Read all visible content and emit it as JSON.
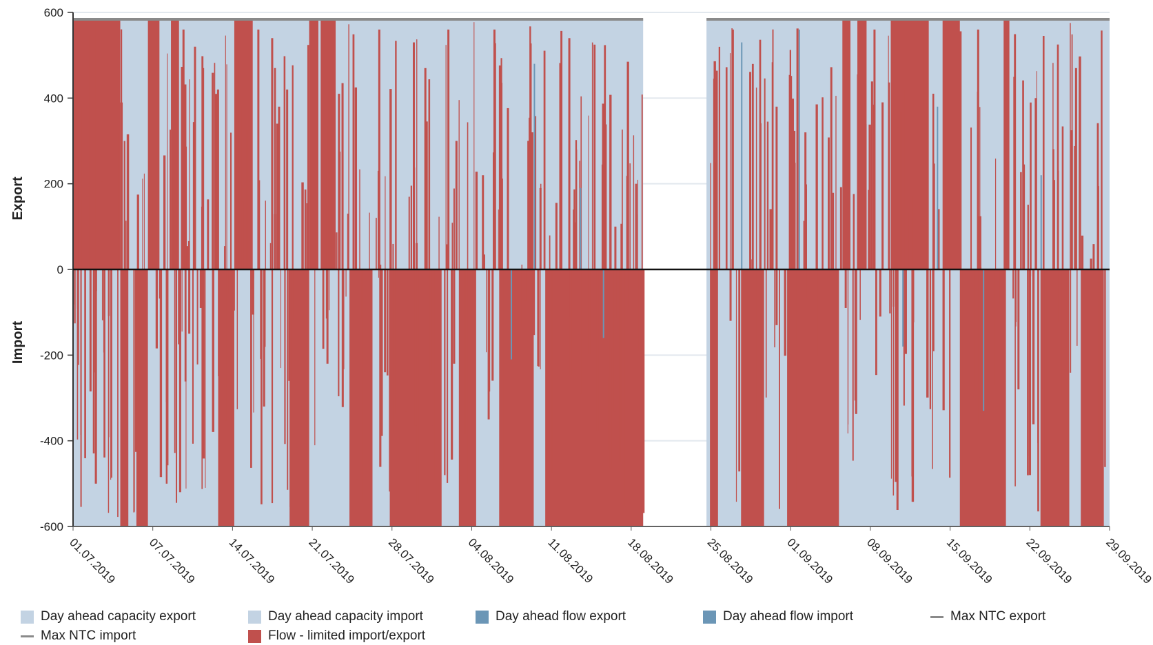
{
  "chart_data": {
    "type": "area",
    "ylabel_top": "Export",
    "ylabel_bottom": "Import",
    "ylim": [
      -600,
      600
    ],
    "yticks": [
      600,
      400,
      200,
      0,
      -200,
      -400,
      -600
    ],
    "xlim": [
      "2019-07-01",
      "2019-09-29"
    ],
    "xticks": [
      "01.07.2019",
      "07.07.2019",
      "14.07.2019",
      "21.07.2019",
      "28.07.2019",
      "04.08.2019",
      "11.08.2019",
      "18.08.2019",
      "25.08.2019",
      "01.09.2019",
      "08.09.2019",
      "15.09.2019",
      "22.09.2019",
      "29.09.2019"
    ],
    "grid": "horizontal",
    "legend_position": "bottom",
    "series": [
      {
        "name": "Day ahead capacity export",
        "color": "#c3d3e3",
        "type": "area",
        "values": [
          [
            0,
            584
          ],
          [
            68,
            584
          ],
          [
            78,
            0
          ],
          [
            84,
            584
          ],
          [
            90,
            584
          ]
        ],
        "day_index": [
          0,
          49.5,
          50,
          50.5,
          55,
          90
        ]
      },
      {
        "name": "Day ahead capacity import",
        "color": "#c3d3e3",
        "type": "area",
        "values": [
          -600,
          -600,
          -600
        ]
      },
      {
        "name": "Day ahead flow export",
        "color": "#6b96b6",
        "type": "bar",
        "spikes": [
          [
            40,
            480
          ],
          [
            44,
            190
          ],
          [
            58,
            530
          ],
          [
            63,
            560
          ],
          [
            75,
            380
          ],
          [
            84,
            220
          ]
        ]
      },
      {
        "name": "Day ahead flow import",
        "color": "#6b96b6",
        "type": "bar",
        "spikes": [
          [
            38,
            -210
          ],
          [
            46,
            -160
          ],
          [
            72,
            -180
          ],
          [
            79,
            -330
          ]
        ]
      },
      {
        "name": "Max NTC export",
        "color": "#8a8a8a",
        "type": "line",
        "value": 584
      },
      {
        "name": "Max NTC import",
        "color": "#8a8a8a",
        "type": "line",
        "value": -600
      },
      {
        "name": "Flow - limited import/export",
        "color": "#c0504d",
        "type": "bar",
        "bands_export": [
          [
            0,
            4.1,
            584
          ],
          [
            6.5,
            7.5,
            584
          ],
          [
            8.5,
            9.2,
            584
          ],
          [
            14,
            15.6,
            584
          ],
          [
            20.5,
            21.3,
            584
          ],
          [
            21.5,
            22.8,
            584
          ],
          [
            66.8,
            67.5,
            584
          ],
          [
            68.1,
            68.9,
            584
          ],
          [
            71,
            74.3,
            584
          ],
          [
            75.5,
            77,
            584
          ],
          [
            80.8,
            81.3,
            584
          ]
        ],
        "bands_import": [
          [
            4.1,
            4.8,
            -600
          ],
          [
            5.5,
            6.5,
            -600
          ],
          [
            12.6,
            14,
            -600
          ],
          [
            18.8,
            20.5,
            -600
          ],
          [
            24,
            26,
            -600
          ],
          [
            27.5,
            32,
            -600
          ],
          [
            33.5,
            35,
            -600
          ],
          [
            37,
            40,
            -600
          ],
          [
            41,
            49.5,
            -600
          ],
          [
            55.3,
            56,
            -600
          ],
          [
            58,
            60,
            -600
          ],
          [
            62,
            66.5,
            -600
          ],
          [
            77,
            81,
            -600
          ],
          [
            84,
            86.5,
            -600
          ],
          [
            87.5,
            89.5,
            -600
          ]
        ],
        "spikes": [
          [
            9.5,
            560
          ],
          [
            10.5,
            520
          ],
          [
            11.2,
            470
          ],
          [
            12.5,
            420
          ],
          [
            16,
            560
          ],
          [
            17.2,
            540
          ],
          [
            17.8,
            380
          ],
          [
            18.5,
            420
          ],
          [
            23,
            410
          ],
          [
            26.5,
            560
          ],
          [
            29.5,
            530
          ],
          [
            30.5,
            470
          ],
          [
            32.5,
            560
          ],
          [
            33.2,
            300
          ],
          [
            35.5,
            220
          ],
          [
            36.5,
            560
          ],
          [
            40.5,
            190
          ],
          [
            43,
            540
          ],
          [
            47,
            100
          ],
          [
            48.8,
            200
          ],
          [
            57.2,
            560
          ],
          [
            61,
            380
          ],
          [
            63.5,
            320
          ],
          [
            69.5,
            560
          ],
          [
            70.2,
            390
          ],
          [
            78.5,
            560
          ],
          [
            83.5,
            400
          ],
          [
            87,
            470
          ],
          [
            10,
            -150
          ],
          [
            11,
            -90
          ],
          [
            16.5,
            -320
          ],
          [
            22,
            -220
          ],
          [
            27,
            -240
          ],
          [
            33,
            -220
          ],
          [
            36,
            -350
          ],
          [
            57,
            -120
          ],
          [
            61,
            -130
          ],
          [
            67,
            -90
          ],
          [
            70,
            -110
          ],
          [
            82,
            -280
          ],
          [
            83,
            -480
          ]
        ]
      }
    ]
  }
}
